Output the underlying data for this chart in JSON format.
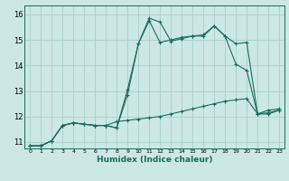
{
  "xlabel": "Humidex (Indice chaleur)",
  "bg_color": "#cce8e4",
  "grid_color": "#aacfcb",
  "line_color": "#1a6b5e",
  "xlim": [
    -0.5,
    23.5
  ],
  "ylim": [
    10.75,
    16.35
  ],
  "xticks": [
    0,
    1,
    2,
    3,
    4,
    5,
    6,
    7,
    8,
    9,
    10,
    11,
    12,
    13,
    14,
    15,
    16,
    17,
    18,
    19,
    20,
    21,
    22,
    23
  ],
  "yticks": [
    11,
    12,
    13,
    14,
    15,
    16
  ],
  "series": [
    {
      "x": [
        0,
        1,
        2,
        3,
        4,
        5,
        6,
        7,
        8,
        9,
        10,
        11,
        12,
        13,
        14,
        15,
        16,
        17,
        18,
        19,
        20,
        21,
        22,
        23
      ],
      "y": [
        10.85,
        10.85,
        11.05,
        11.65,
        11.75,
        11.7,
        11.65,
        11.65,
        11.55,
        13.05,
        14.85,
        15.75,
        14.9,
        15.0,
        15.1,
        15.15,
        15.15,
        15.55,
        15.15,
        14.85,
        14.9,
        12.1,
        12.25,
        12.3
      ]
    },
    {
      "x": [
        0,
        1,
        2,
        3,
        4,
        5,
        6,
        7,
        8,
        9,
        10,
        11,
        12,
        13,
        14,
        15,
        16,
        17,
        18,
        19,
        20,
        21,
        22,
        23
      ],
      "y": [
        10.85,
        10.85,
        11.05,
        11.65,
        11.75,
        11.7,
        11.65,
        11.65,
        11.55,
        12.85,
        14.85,
        15.85,
        15.7,
        14.95,
        15.05,
        15.15,
        15.2,
        15.55,
        15.15,
        14.05,
        13.8,
        12.1,
        12.1,
        12.25
      ]
    },
    {
      "x": [
        0,
        1,
        2,
        3,
        4,
        5,
        6,
        7,
        8,
        9,
        10,
        11,
        12,
        13,
        14,
        15,
        16,
        17,
        18,
        19,
        20,
        21,
        22,
        23
      ],
      "y": [
        10.85,
        10.85,
        11.05,
        11.65,
        11.75,
        11.7,
        11.65,
        11.65,
        11.8,
        11.85,
        11.9,
        11.95,
        12.0,
        12.1,
        12.2,
        12.3,
        12.4,
        12.5,
        12.6,
        12.65,
        12.7,
        12.1,
        12.15,
        12.25
      ]
    }
  ]
}
